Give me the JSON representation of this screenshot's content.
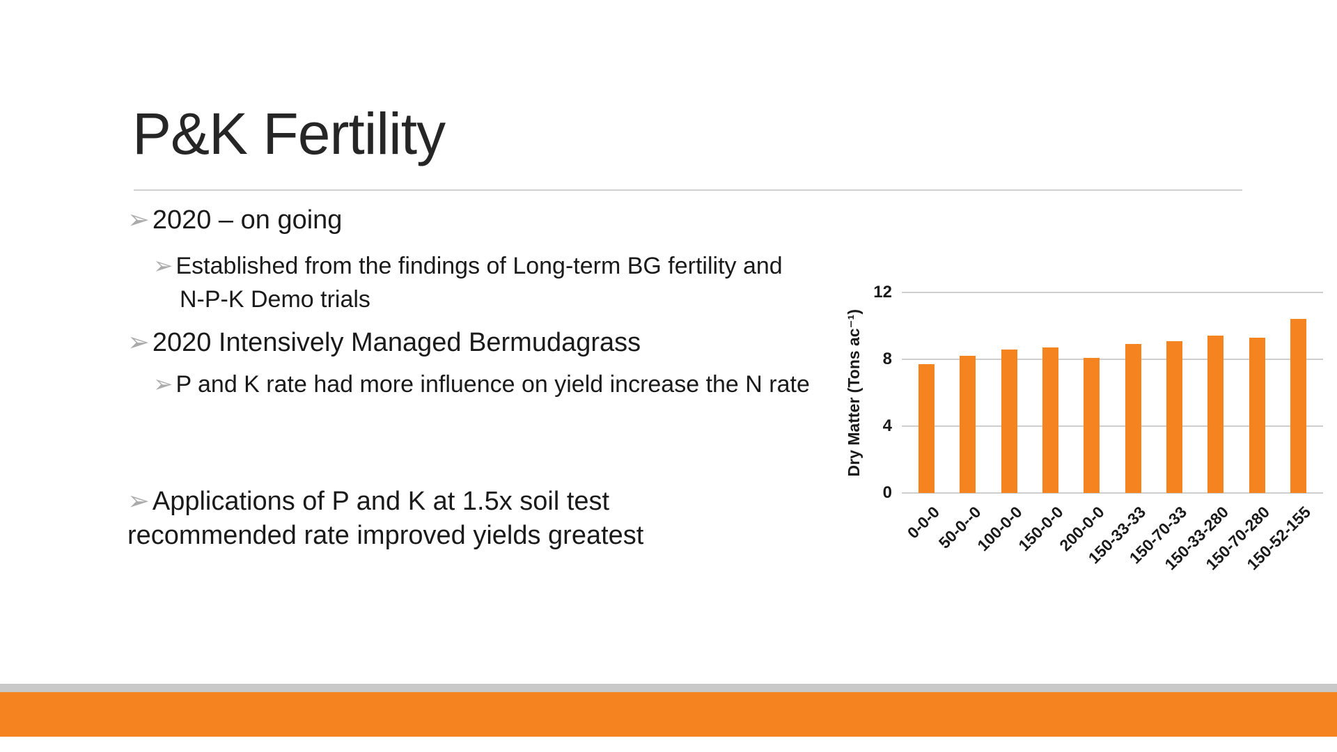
{
  "slide": {
    "title": "P&K Fertility",
    "bullet_glyph": "➢",
    "bullets": [
      {
        "level": 1,
        "text": "2020 – on going"
      },
      {
        "level": 2,
        "text": "Established from the findings of Long-term BG fertility and N-P-K Demo trials"
      },
      {
        "level": 1,
        "text": "2020 Intensively Managed Bermudagrass"
      },
      {
        "level": 2,
        "text": "P and K rate had more influence on yield increase the N rate"
      },
      {
        "level": 1,
        "text": "Applications of P and K at 1.5x soil test recommended rate improved yields greatest"
      }
    ]
  },
  "colors": {
    "accent_orange": "#F5831F",
    "footer_gray": "#C9C9C9",
    "gridline": "#9E9E9E",
    "bullet_marker": "#ABABAB",
    "text": "#1A1A1A"
  },
  "chart_data": {
    "type": "bar",
    "categories": [
      "0-0-0",
      "50-0--0",
      "100-0-0",
      "150-0-0",
      "200-0-0",
      "150-33-33",
      "150-70-33",
      "150-33-280",
      "150-70-280",
      "150-52-155"
    ],
    "values": [
      7.7,
      8.2,
      8.6,
      8.7,
      8.1,
      8.9,
      9.1,
      9.4,
      9.3,
      10.4
    ],
    "title": "",
    "xlabel": "",
    "ylabel": "Dry Matter (Tons ac⁻¹)",
    "ylim": [
      0,
      12
    ],
    "yticks": [
      0,
      4,
      8,
      12
    ],
    "bar_color": "#F5831F",
    "grid": true,
    "legend": false
  }
}
